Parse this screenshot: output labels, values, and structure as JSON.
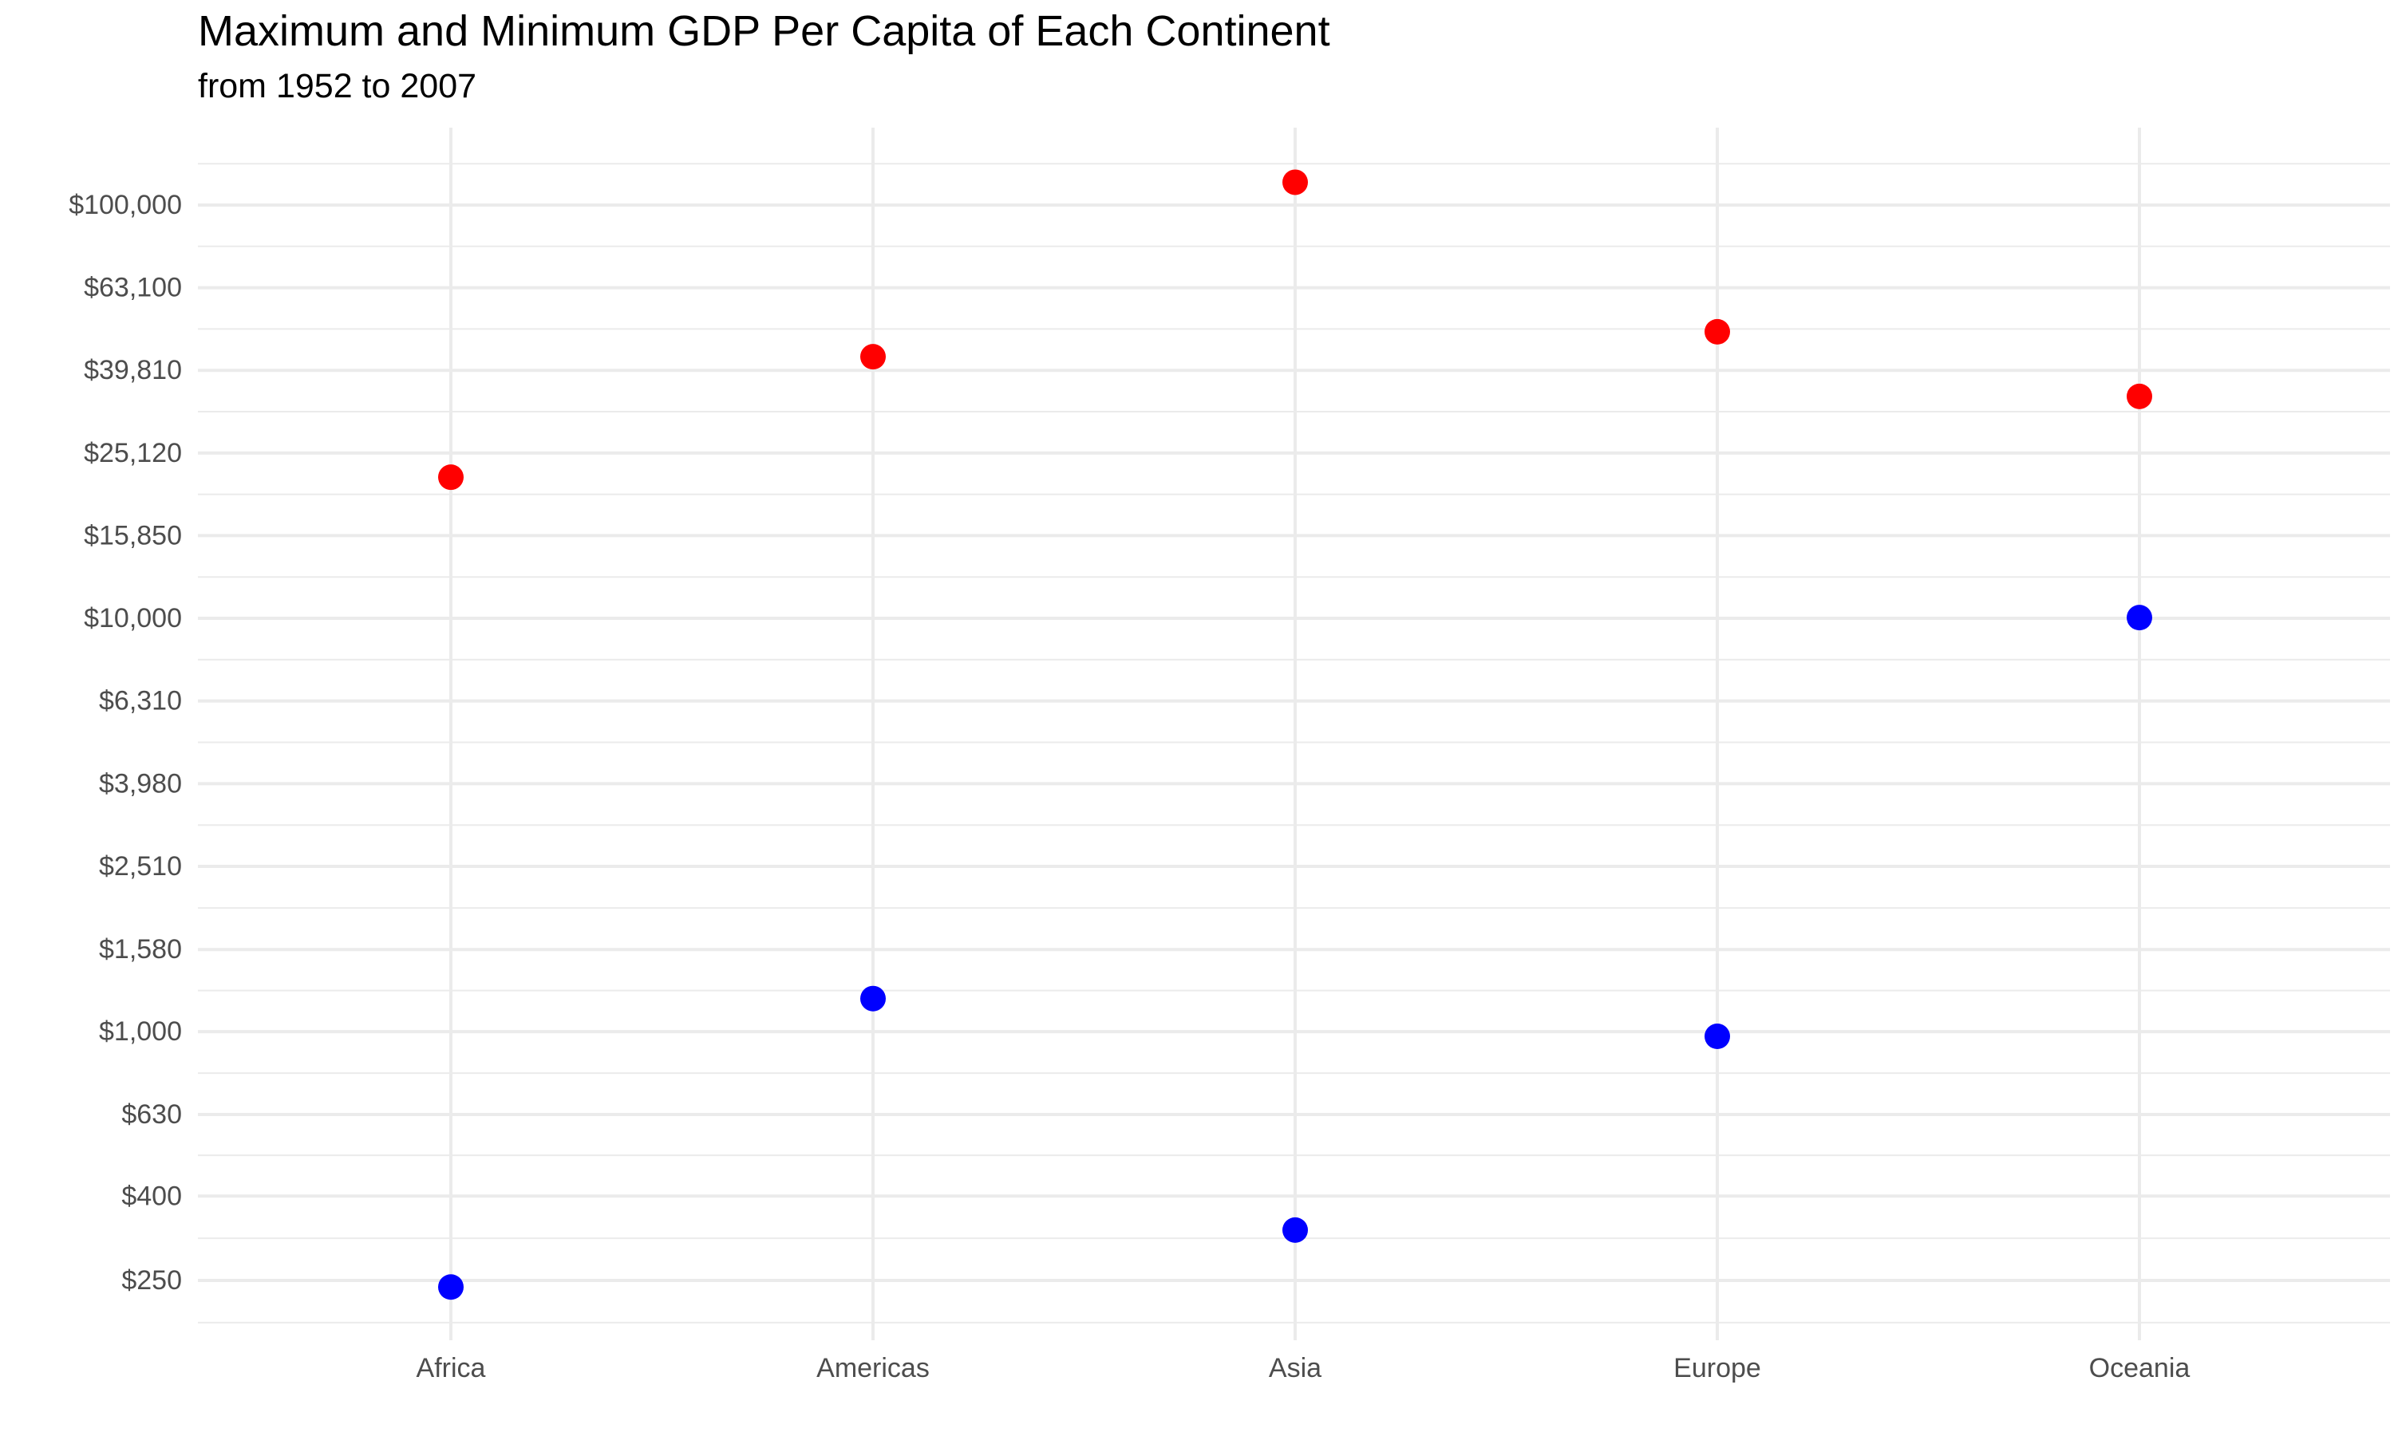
{
  "chart_data": {
    "type": "scatter",
    "title": "Maximum and Minimum GDP Per Capita of Each Continent",
    "subtitle": "from 1952 to 2007",
    "xlabel": "",
    "ylabel": "",
    "y_scale": "log10",
    "ylim": [
      200,
      140000
    ],
    "categories": [
      "Africa",
      "Americas",
      "Asia",
      "Europe",
      "Oceania"
    ],
    "y_ticks": [
      250,
      400,
      630,
      1000,
      1580,
      2510,
      3980,
      6310,
      10000,
      15850,
      25120,
      39810,
      63100,
      100000
    ],
    "y_tick_labels": [
      "$250",
      "$400",
      "$630",
      "$1,000",
      "$1,580",
      "$2,510",
      "$3,980",
      "$6,310",
      "$10,000",
      "$15,850",
      "$25,120",
      "$39,810",
      "$63,100",
      "$100,000"
    ],
    "grid": true,
    "legend": "none",
    "series": [
      {
        "color": "#ff0000",
        "values": [
          21950,
          42952,
          113523,
          49357,
          34435
        ]
      },
      {
        "color": "#0000ff",
        "values": [
          241,
          1202,
          331,
          974,
          10040
        ]
      }
    ]
  }
}
